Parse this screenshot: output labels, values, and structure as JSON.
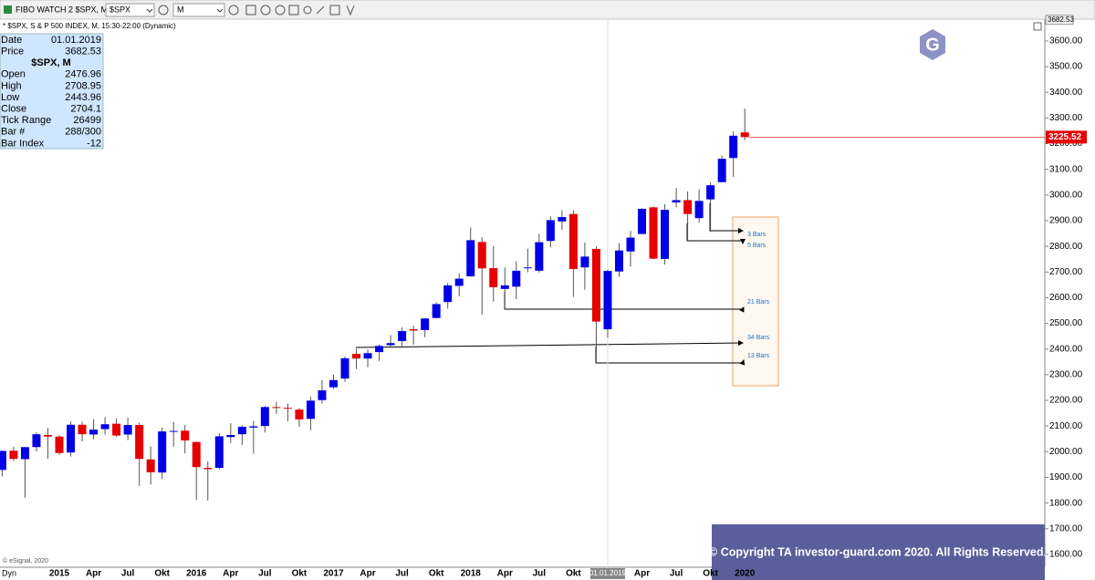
{
  "toolbar": {
    "title": "FIBO WATCH 2 $SPX, M",
    "symbol": "$SPX",
    "interval": "M"
  },
  "data_window": {
    "rows_top": [
      [
        "Date",
        "01.01.2019"
      ],
      [
        "Price",
        3682.53
      ]
    ],
    "header": "$SPX, M",
    "rows": [
      [
        "Open",
        2476.96
      ],
      [
        "High",
        2708.95
      ],
      [
        "Low",
        2443.96
      ],
      [
        "Close",
        2704.1
      ],
      [
        "Tick Range",
        26499
      ],
      [
        "Bar #",
        "288/300"
      ],
      [
        "Bar Index",
        -12
      ]
    ]
  },
  "chart_data": {
    "type": "candlestick",
    "subtitle": "* $SPX, S & P 500 INDEX, M, 15:30-22:00 (Dynamic)",
    "categories": [
      null,
      null,
      null,
      null,
      null,
      "2015",
      null,
      null,
      "Apr",
      null,
      null,
      "Jul",
      null,
      null,
      "Okt",
      null,
      null,
      "2016",
      null,
      null,
      "Apr",
      null,
      null,
      "Jul",
      null,
      null,
      "Okt",
      null,
      null,
      "2017",
      null,
      null,
      "Apr",
      null,
      null,
      "Jul",
      null,
      null,
      "Okt",
      null,
      null,
      "2018",
      null,
      null,
      "Apr",
      null,
      null,
      "Jul",
      null,
      null,
      "Okt",
      null,
      null,
      "01.01.2019",
      null,
      null,
      "Apr",
      null,
      null,
      "Jul",
      null,
      null,
      "Okt",
      null,
      null,
      "2020"
    ],
    "open": [
      1929,
      2004,
      1971,
      2018,
      2065,
      2059,
      1997,
      2105,
      2067,
      2088,
      2109,
      2067,
      2104,
      1970,
      1919,
      2080,
      2082,
      2038,
      1937,
      1937,
      2057,
      2068,
      2094,
      2100,
      2174,
      2171,
      2164,
      2128,
      2201,
      2251,
      2285,
      2381,
      2363,
      2388,
      2415,
      2431,
      2477,
      2474,
      2521,
      2583,
      2646,
      2683,
      2817,
      2715,
      2634,
      2643,
      2718,
      2705,
      2821,
      2897,
      2926,
      2718,
      2790,
      2476.96,
      2702,
      2780,
      2848,
      2952,
      2751,
      2971,
      2980,
      2910,
      2983,
      3050,
      3144,
      3244
    ],
    "high": [
      2005,
      2019,
      2018,
      2075,
      2093,
      2064,
      2119,
      2117,
      2126,
      2135,
      2130,
      2133,
      2113,
      2021,
      2094,
      2116,
      2104,
      2038,
      1963,
      2073,
      2111,
      2103,
      2120,
      2178,
      2194,
      2188,
      2170,
      2214,
      2278,
      2300,
      2371,
      2401,
      2398,
      2418,
      2454,
      2484,
      2491,
      2520,
      2582,
      2657,
      2695,
      2873,
      2835,
      2801,
      2718,
      2742,
      2791,
      2848,
      2917,
      2941,
      2940,
      2815,
      2800,
      2708.95,
      2813,
      2860,
      2949,
      2954,
      2964,
      3028,
      3014,
      3022,
      3050,
      3154,
      3248,
      3337
    ],
    "low": [
      1904,
      1964,
      1821,
      2001,
      1973,
      1988,
      1981,
      2040,
      2049,
      2067,
      2057,
      2045,
      1867,
      1872,
      1893,
      2019,
      1993,
      1812,
      1810,
      1931,
      2034,
      2026,
      1992,
      2075,
      2148,
      2119,
      2097,
      2084,
      2187,
      2245,
      2272,
      2322,
      2329,
      2353,
      2405,
      2407,
      2417,
      2446,
      2520,
      2557,
      2605,
      2682,
      2533,
      2585,
      2553,
      2594,
      2699,
      2698,
      2796,
      2864,
      2603,
      2631,
      2346,
      2443.96,
      2681,
      2722,
      2848,
      2750,
      2729,
      2952,
      2822,
      2892,
      2856,
      3050,
      3070,
      3214
    ],
    "close": [
      2003,
      1972,
      2018,
      2068,
      2059,
      1995,
      2105,
      2068,
      2086,
      2107,
      2063,
      2104,
      1972,
      1920,
      2079,
      2081,
      2044,
      1940,
      1932,
      2060,
      2065,
      2097,
      2099,
      2174,
      2171,
      2168,
      2126,
      2199,
      2239,
      2279,
      2364,
      2363,
      2384,
      2412,
      2423,
      2470,
      2472,
      2519,
      2575,
      2648,
      2674,
      2824,
      2714,
      2641,
      2648,
      2705,
      2718,
      2816,
      2902,
      2914,
      2712,
      2760,
      2507,
      2704.1,
      2784,
      2834,
      2946,
      2752,
      2942,
      2980,
      2926,
      2977,
      3038,
      3141,
      3231,
      3225.52
    ],
    "up_color": "#0000e6",
    "down_color": "#e60000",
    "ylim": [
      1550,
      3685
    ],
    "yticks": [
      {
        "value": 1600,
        "label": "1600.00"
      },
      {
        "value": 1700,
        "label": "1700.00"
      },
      {
        "value": 1800,
        "label": "1800.00"
      },
      {
        "value": 1900,
        "label": "1900.00"
      },
      {
        "value": 2000,
        "label": "2000.00"
      },
      {
        "value": 2100,
        "label": "2100.00"
      },
      {
        "value": 2200,
        "label": "2200.00"
      },
      {
        "value": 2300,
        "label": "2300.00"
      },
      {
        "value": 2400,
        "label": "2400.00"
      },
      {
        "value": 2500,
        "label": "2500.00"
      },
      {
        "value": 2600,
        "label": "2600.00"
      },
      {
        "value": 2700,
        "label": "2700.00"
      },
      {
        "value": 2800,
        "label": "2800.00"
      },
      {
        "value": 2900,
        "label": "2900.00"
      },
      {
        "value": 3000,
        "label": "3000.00"
      },
      {
        "value": 3100,
        "label": "3100.00"
      },
      {
        "value": 3200,
        "label": "3200.00"
      },
      {
        "value": 3300,
        "label": "3300.00"
      },
      {
        "value": 3400,
        "label": "3400.00"
      },
      {
        "value": 3500,
        "label": "3500.00"
      },
      {
        "value": 3600,
        "label": "3600.00"
      }
    ],
    "grid": false,
    "cursor_price": 3682.53,
    "last_price": 3225.52,
    "annotations": [
      "3 Bars",
      "5 Bars",
      "21 Bars",
      "34 Bars",
      "13 Bars"
    ],
    "x_prefix": "Dyn",
    "source": "© eSignal, 2020",
    "copyright": "© Copyright TA investor-guard.com 2020. All Rights Reserved.",
    "logo": "G"
  }
}
